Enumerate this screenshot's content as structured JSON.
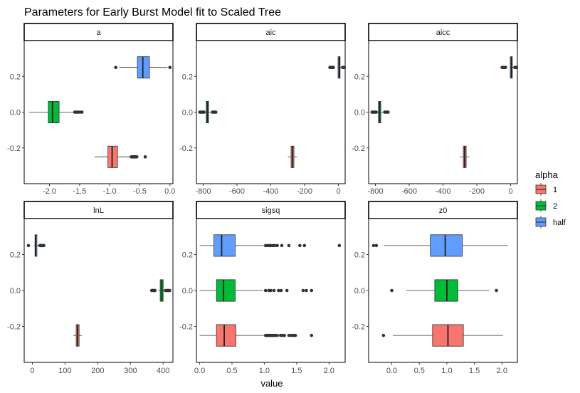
{
  "chart_data": {
    "type": "boxplot",
    "title": "Parameters for Early Burst Model fit to Scaled Tree",
    "xlabel": "value",
    "ylabel": "",
    "y_ticks": [
      "-0.2",
      "0.0",
      "0.2"
    ],
    "legend": {
      "title": "alpha",
      "position": "right",
      "entries": [
        {
          "label": "1",
          "color": "#f8766d"
        },
        {
          "label": "2",
          "color": "#00ba38"
        },
        {
          "label": "half",
          "color": "#619cff"
        }
      ]
    },
    "panels": [
      {
        "name": "a",
        "xlim": [
          -2.42,
          0.05
        ],
        "x_ticks": [
          -2.0,
          -1.5,
          -1.0,
          -0.5,
          0.0
        ],
        "x_tick_labels": [
          "-2.0",
          "-1.5",
          "-1.0",
          "-0.5",
          "0.0"
        ],
        "series": [
          {
            "group": "1",
            "position": -0.25,
            "whisker_low": -1.25,
            "q1": -1.03,
            "median": -0.96,
            "q3": -0.87,
            "whisker_high": -0.66,
            "outliers": [
              -0.64,
              -0.62,
              -0.6,
              -0.59,
              -0.58,
              -0.57,
              -0.55,
              -0.41
            ]
          },
          {
            "group": "2",
            "position": 0.0,
            "whisker_low": -2.34,
            "q1": -2.02,
            "median": -1.95,
            "q3": -1.84,
            "whisker_high": -1.59,
            "outliers": [
              -1.58,
              -1.56,
              -1.54,
              -1.52,
              -1.49,
              -1.46
            ]
          },
          {
            "group": "half",
            "position": 0.25,
            "whisker_low": -0.84,
            "q1": -0.54,
            "median": -0.45,
            "q3": -0.34,
            "whisker_high": -0.04,
            "outliers": [
              -0.9,
              0.0
            ]
          }
        ]
      },
      {
        "name": "aic",
        "xlim": [
          -840,
          40
        ],
        "x_ticks": [
          -800,
          -600,
          -400,
          -200,
          0
        ],
        "x_tick_labels": [
          "-800",
          "-600",
          "-400",
          "-200",
          "0"
        ],
        "series": [
          {
            "group": "1",
            "position": -0.25,
            "whisker_low": -300,
            "q1": -280,
            "median": -272,
            "q3": -263,
            "whisker_high": -245,
            "outliers": []
          },
          {
            "group": "2",
            "position": 0.0,
            "whisker_low": -790,
            "q1": -782,
            "median": -775,
            "q3": -768,
            "whisker_high": -755,
            "outliers": [
              -820,
              -815,
              -810,
              -805,
              -800,
              -795,
              -745,
              -740,
              -735,
              -730,
              -725
            ]
          },
          {
            "group": "half",
            "position": 0.25,
            "whisker_low": -5,
            "q1": -2,
            "median": 5,
            "q3": 10,
            "whisker_high": 18,
            "outliers": [
              -50,
              -45,
              -40,
              -35,
              -30,
              25,
              30,
              35
            ]
          }
        ]
      },
      {
        "name": "aicc",
        "xlim": [
          -840,
          40
        ],
        "x_ticks": [
          -800,
          -600,
          -400,
          -200,
          0
        ],
        "x_tick_labels": [
          "-800",
          "-600",
          "-400",
          "-200",
          "0"
        ],
        "series": [
          {
            "group": "1",
            "position": -0.25,
            "whisker_low": -300,
            "q1": -280,
            "median": -272,
            "q3": -263,
            "whisker_high": -245,
            "outliers": []
          },
          {
            "group": "2",
            "position": 0.0,
            "whisker_low": -790,
            "q1": -782,
            "median": -775,
            "q3": -768,
            "whisker_high": -755,
            "outliers": [
              -820,
              -815,
              -810,
              -805,
              -800,
              -795,
              -745,
              -740,
              -735,
              -730,
              -725
            ]
          },
          {
            "group": "half",
            "position": 0.25,
            "whisker_low": -5,
            "q1": -2,
            "median": 5,
            "q3": 10,
            "whisker_high": 18,
            "outliers": [
              -50,
              -45,
              -40,
              -35,
              -30,
              25,
              30,
              35
            ]
          }
        ]
      },
      {
        "name": "lnL",
        "xlim": [
          -25,
          430
        ],
        "x_ticks": [
          0,
          100,
          200,
          300,
          400
        ],
        "x_tick_labels": [
          "0",
          "100",
          "200",
          "300",
          "400"
        ],
        "series": [
          {
            "group": "1",
            "position": -0.25,
            "whisker_low": 125,
            "q1": 134,
            "median": 138,
            "q3": 143,
            "whisker_high": 152,
            "outliers": []
          },
          {
            "group": "2",
            "position": 0.0,
            "whisker_low": 385,
            "q1": 391,
            "median": 396,
            "q3": 400,
            "whisker_high": 405,
            "outliers": [
              365,
              367,
              369,
              371,
              373,
              375,
              407,
              410,
              412,
              415,
              418,
              420
            ]
          },
          {
            "group": "half",
            "position": 0.25,
            "whisker_low": 5,
            "q1": 8,
            "median": 10,
            "q3": 14,
            "whisker_high": 20,
            "outliers": [
              -12,
              23,
              25,
              28,
              30,
              33,
              35
            ]
          }
        ]
      },
      {
        "name": "sigsq",
        "xlim": [
          -0.05,
          2.25
        ],
        "x_ticks": [
          0.0,
          0.5,
          1.0,
          1.5,
          2.0
        ],
        "x_tick_labels": [
          "0.0",
          "0.5",
          "1.0",
          "1.5",
          "2.0"
        ],
        "series": [
          {
            "group": "1",
            "position": -0.25,
            "whisker_low": 0.0,
            "q1": 0.26,
            "median": 0.38,
            "q3": 0.56,
            "whisker_high": 1.0,
            "outliers": [
              1.02,
              1.04,
              1.06,
              1.08,
              1.1,
              1.12,
              1.14,
              1.17,
              1.2,
              1.25,
              1.28,
              1.31,
              1.38,
              1.42,
              1.45,
              1.48,
              1.73
            ]
          },
          {
            "group": "2",
            "position": 0.0,
            "whisker_low": 0.0,
            "q1": 0.26,
            "median": 0.37,
            "q3": 0.55,
            "whisker_high": 0.98,
            "outliers": [
              1.02,
              1.07,
              1.1,
              1.15,
              1.22,
              1.26,
              1.35,
              1.6,
              1.65,
              1.73
            ]
          },
          {
            "group": "half",
            "position": 0.25,
            "whisker_low": 0.0,
            "q1": 0.22,
            "median": 0.34,
            "q3": 0.55,
            "whisker_high": 1.0,
            "outliers": [
              1.02,
              1.05,
              1.08,
              1.1,
              1.13,
              1.16,
              1.2,
              1.27,
              1.38,
              1.55,
              1.62,
              2.16
            ]
          }
        ]
      },
      {
        "name": "z0",
        "xlim": [
          -0.42,
          2.28
        ],
        "x_ticks": [
          0.0,
          0.5,
          1.0,
          1.5,
          2.0
        ],
        "x_tick_labels": [
          "0.0",
          "0.5",
          "1.0",
          "1.5",
          "2.0"
        ],
        "series": [
          {
            "group": "1",
            "position": -0.25,
            "whisker_low": 0.02,
            "q1": 0.74,
            "median": 1.02,
            "q3": 1.3,
            "whisker_high": 2.02,
            "outliers": [
              -0.15
            ]
          },
          {
            "group": "2",
            "position": 0.0,
            "whisker_low": 0.26,
            "q1": 0.78,
            "median": 1.0,
            "q3": 1.2,
            "whisker_high": 1.77,
            "outliers": [
              0.0,
              1.9
            ]
          },
          {
            "group": "half",
            "position": 0.25,
            "whisker_low": -0.14,
            "q1": 0.7,
            "median": 0.97,
            "q3": 1.28,
            "whisker_high": 2.11,
            "outliers": [
              -0.33,
              -0.28
            ]
          }
        ]
      }
    ]
  }
}
